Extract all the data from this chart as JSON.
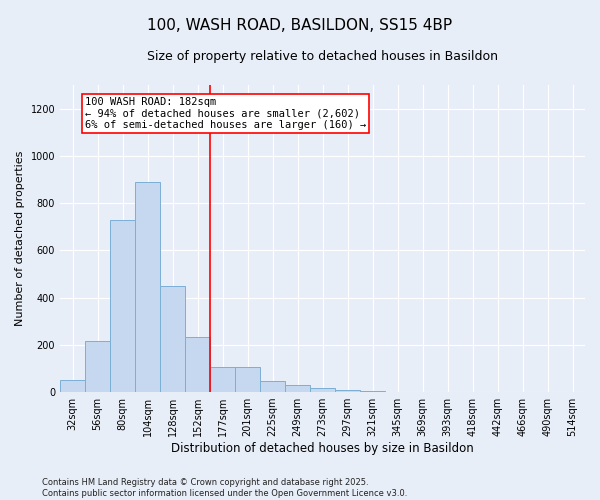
{
  "title": "100, WASH ROAD, BASILDON, SS15 4BP",
  "subtitle": "Size of property relative to detached houses in Basildon",
  "xlabel": "Distribution of detached houses by size in Basildon",
  "ylabel": "Number of detached properties",
  "footnote1": "Contains HM Land Registry data © Crown copyright and database right 2025.",
  "footnote2": "Contains public sector information licensed under the Open Government Licence v3.0.",
  "categories": [
    "32sqm",
    "56sqm",
    "80sqm",
    "104sqm",
    "128sqm",
    "152sqm",
    "177sqm",
    "201sqm",
    "225sqm",
    "249sqm",
    "273sqm",
    "297sqm",
    "321sqm",
    "345sqm",
    "369sqm",
    "393sqm",
    "418sqm",
    "442sqm",
    "466sqm",
    "490sqm",
    "514sqm"
  ],
  "values": [
    50,
    215,
    730,
    890,
    450,
    235,
    105,
    105,
    48,
    30,
    18,
    10,
    5,
    2,
    1,
    0,
    0,
    0,
    0,
    0,
    0
  ],
  "bar_color": "#c5d8f0",
  "bar_edge_color": "#7bafd4",
  "vline_x_index": 6,
  "vline_color": "red",
  "annotation_line1": "100 WASH ROAD: 182sqm",
  "annotation_line2": "← 94% of detached houses are smaller (2,602)",
  "annotation_line3": "6% of semi-detached houses are larger (160) →",
  "annotation_box_color": "white",
  "annotation_box_edge_color": "red",
  "ylim": [
    0,
    1300
  ],
  "yticks": [
    0,
    200,
    400,
    600,
    800,
    1000,
    1200
  ],
  "background_color": "#e8eef8",
  "axes_background_color": "#e8eef8",
  "grid_color": "white",
  "title_fontsize": 11,
  "subtitle_fontsize": 9,
  "xlabel_fontsize": 8.5,
  "ylabel_fontsize": 8,
  "tick_fontsize": 7,
  "annotation_fontsize": 7.5,
  "footnote_fontsize": 6
}
